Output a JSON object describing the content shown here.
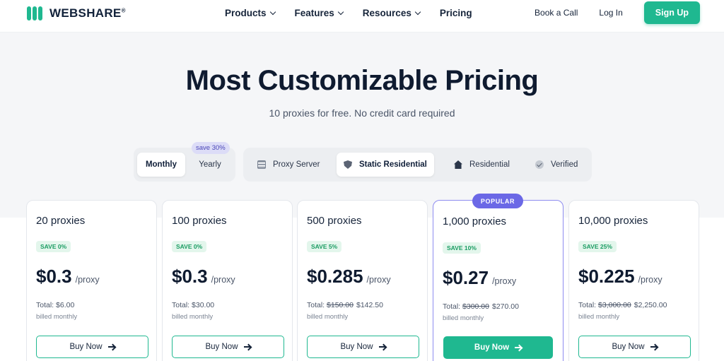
{
  "nav": {
    "brand": "WEBSHARE",
    "brand_mark": "®",
    "links": [
      {
        "label": "Products",
        "dropdown": true
      },
      {
        "label": "Features",
        "dropdown": true
      },
      {
        "label": "Resources",
        "dropdown": true
      },
      {
        "label": "Pricing",
        "dropdown": false
      }
    ],
    "book_call": "Book a Call",
    "login": "Log In",
    "signup": "Sign Up"
  },
  "hero": {
    "title": "Most Customizable Pricing",
    "subtitle": "10 proxies for free. No credit card required"
  },
  "billing": {
    "options": [
      "Monthly",
      "Yearly"
    ],
    "selected": "Monthly",
    "yearly_badge": "save 30%"
  },
  "proxy_types": {
    "options": [
      {
        "label": "Proxy Server",
        "icon": "server-icon"
      },
      {
        "label": "Static Residential",
        "icon": "shield-icon"
      },
      {
        "label": "Residential",
        "icon": "house-icon"
      },
      {
        "label": "Verified",
        "icon": "check-circle-icon"
      }
    ],
    "selected": "Static Residential"
  },
  "plans": [
    {
      "name": "20 proxies",
      "save": "SAVE 0%",
      "price": "$0.3",
      "unit": "/proxy",
      "total_label": "Total:",
      "old_total": "",
      "total": "$6.00",
      "billed": "billed monthly",
      "cta": "Buy Now"
    },
    {
      "name": "100 proxies",
      "save": "SAVE 0%",
      "price": "$0.3",
      "unit": "/proxy",
      "total_label": "Total:",
      "old_total": "",
      "total": "$30.00",
      "billed": "billed monthly",
      "cta": "Buy Now"
    },
    {
      "name": "500 proxies",
      "save": "SAVE 5%",
      "price": "$0.285",
      "unit": "/proxy",
      "total_label": "Total:",
      "old_total": "$150.00",
      "total": "$142.50",
      "billed": "billed monthly",
      "cta": "Buy Now"
    },
    {
      "name": "1,000 proxies",
      "save": "SAVE 10%",
      "price": "$0.27",
      "unit": "/proxy",
      "total_label": "Total:",
      "old_total": "$300.00",
      "total": "$270.00",
      "billed": "billed monthly",
      "cta": "Buy Now",
      "popular_label": "POPULAR"
    },
    {
      "name": "10,000 proxies",
      "save": "SAVE 25%",
      "price": "$0.225",
      "unit": "/proxy",
      "total_label": "Total:",
      "old_total": "$3,000.00",
      "total": "$2,250.00",
      "billed": "billed monthly",
      "cta": "Buy Now"
    }
  ],
  "colors": {
    "brand_green": "#1fb890",
    "popular_purple": "#6b68e6",
    "save_badge_text": "#1a9c62"
  }
}
